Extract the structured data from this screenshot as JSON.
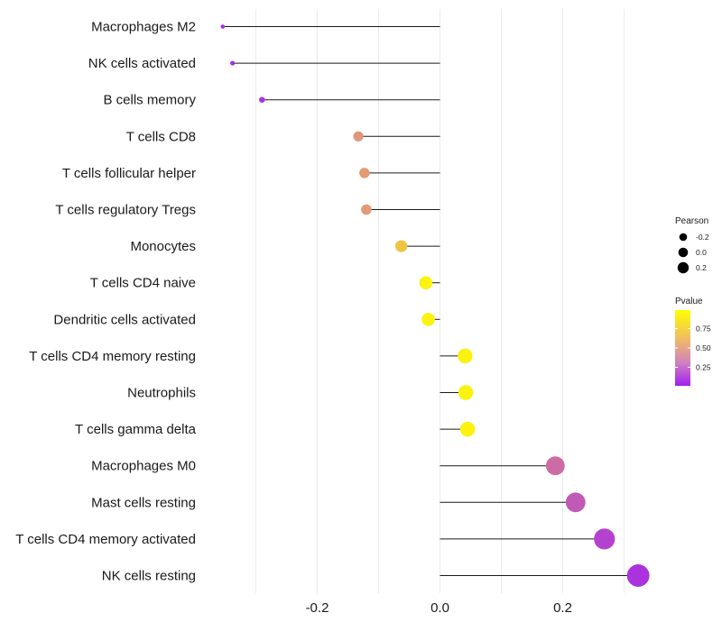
{
  "chart_data": {
    "type": "lollipop",
    "categories": [
      "Macrophages M2",
      "NK cells activated",
      "B cells memory",
      "T cells CD8",
      "T cells follicular helper",
      "T cells regulatory  Tregs",
      "Monocytes",
      "T cells CD4 naive",
      "Dendritic cells activated",
      "T cells CD4 memory resting",
      "Neutrophils",
      "T cells gamma delta",
      "Macrophages M0",
      "Mast cells resting",
      "T cells CD4 memory activated",
      "NK cells resting"
    ],
    "values": [
      -0.354,
      -0.338,
      -0.29,
      -0.133,
      -0.123,
      -0.12,
      -0.063,
      -0.023,
      -0.019,
      0.041,
      0.042,
      0.045,
      0.188,
      0.221,
      0.268,
      0.323
    ],
    "pvalues": [
      0.05,
      0.05,
      0.1,
      0.6,
      0.62,
      0.62,
      0.78,
      0.95,
      0.95,
      0.95,
      0.95,
      0.95,
      0.4,
      0.3,
      0.18,
      0.1
    ],
    "xlim": [
      -0.4,
      0.34
    ],
    "xticks": [
      -0.2,
      0.0,
      0.2
    ],
    "xtick_labels": [
      "-0.2",
      "0.0",
      "0.2"
    ],
    "xlabel": "",
    "ylabel": "",
    "grid": true,
    "legend": {
      "placement": "right",
      "size_title": "Pearson",
      "size_breaks": [
        -0.2,
        0.0,
        0.2
      ],
      "size_labels": [
        "-0.2",
        "0.0",
        "0.2"
      ],
      "color_title": "Pvalue",
      "color_breaks": [
        0.75,
        0.5,
        0.25
      ],
      "color_labels": [
        "0.75",
        "0.50",
        "0.25"
      ],
      "color_low": "#a020f0",
      "color_high": "#ffff00"
    }
  }
}
